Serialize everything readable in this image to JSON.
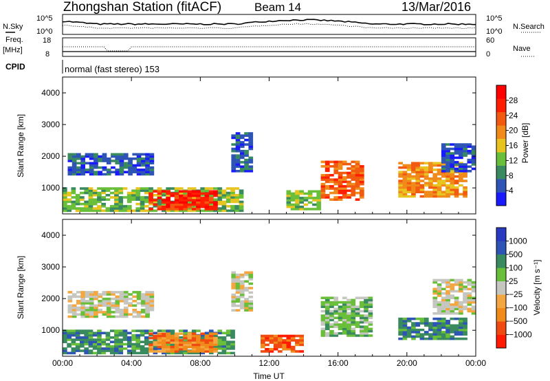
{
  "header": {
    "station": "Zhongshan Station (fitACF)",
    "beam": "Beam 14",
    "date": "13/Mar/2016"
  },
  "strip_noise": {
    "left_label": "N.Sky",
    "right_label": "N.Search",
    "left_ticks": [
      "10^5",
      "10^0"
    ],
    "right_ticks": [
      "10^5",
      "10^0"
    ]
  },
  "strip_freq": {
    "left_label_1": "Freq.",
    "left_label_2": "[MHz]",
    "left_ticks": [
      "18",
      "8"
    ],
    "right_label": "Nave",
    "right_ticks": [
      "60",
      "0"
    ]
  },
  "strip_cpid": {
    "label": "CPID",
    "text": "normal (fast stereo) 153"
  },
  "colors": {
    "power": [
      "#1a1aff",
      "#2e55b5",
      "#3a8a60",
      "#6abf3a",
      "#e8c420",
      "#f08a1a",
      "#f25a10",
      "#ff1f00",
      "#ff0000"
    ],
    "velocity": [
      "#ff1a00",
      "#f04a10",
      "#f08a1a",
      "#f4a640",
      "#c6c6c0",
      "#6abf3a",
      "#3a8a60",
      "#2e55b5",
      "#2a3ac0"
    ]
  },
  "chart_data": [
    {
      "type": "heatmap",
      "panel": "power",
      "ylabel": "Slant Range [km]",
      "ylim": [
        180,
        4500
      ],
      "y_ticks": [
        "1000",
        "2000",
        "3000",
        "4000"
      ],
      "x_ticks": [
        "00:00",
        "04:00",
        "08:00",
        "12:00",
        "16:00",
        "20:00",
        "00:00"
      ],
      "colorbar": {
        "label": "Power [dB]",
        "ticks": [
          "4",
          "8",
          "12",
          "16",
          "20",
          "24",
          "28"
        ]
      },
      "regions": [
        {
          "t": [
            0.3,
            5.2
          ],
          "r": [
            1400,
            2100
          ],
          "level": 1
        },
        {
          "t": [
            0.0,
            10.5
          ],
          "r": [
            250,
            1000
          ],
          "level": 3
        },
        {
          "t": [
            5.0,
            9.0
          ],
          "r": [
            300,
            900
          ],
          "level": 7
        },
        {
          "t": [
            9.8,
            11.0
          ],
          "r": [
            1500,
            2700
          ],
          "level": 1
        },
        {
          "t": [
            13.0,
            15.0
          ],
          "r": [
            300,
            900
          ],
          "level": 3
        },
        {
          "t": [
            15.0,
            17.5
          ],
          "r": [
            600,
            1800
          ],
          "level": 6
        },
        {
          "t": [
            19.5,
            23.5
          ],
          "r": [
            700,
            1800
          ],
          "level": 5
        },
        {
          "t": [
            22.0,
            24.0
          ],
          "r": [
            1500,
            2400
          ],
          "level": 1
        }
      ]
    },
    {
      "type": "heatmap",
      "panel": "velocity",
      "ylabel": "Slant Range [km]",
      "xlabel": "Time UT",
      "ylim": [
        180,
        4500
      ],
      "y_ticks": [
        "1000",
        "2000",
        "3000",
        "4000"
      ],
      "x_ticks": [
        "00:00",
        "04:00",
        "08:00",
        "12:00",
        "16:00",
        "20:00",
        "00:00"
      ],
      "colorbar": {
        "label": "Velocity [m s⁻¹]",
        "ticks": [
          "1000",
          "500",
          "100",
          "25",
          "−25",
          "−100",
          "−500",
          "−1000"
        ]
      },
      "regions": [
        {
          "t": [
            0.3,
            5.2
          ],
          "r": [
            1400,
            2200
          ],
          "level": 4
        },
        {
          "t": [
            0.0,
            10.0
          ],
          "r": [
            250,
            1000
          ],
          "level": 6
        },
        {
          "t": [
            5.0,
            9.0
          ],
          "r": [
            300,
            900
          ],
          "level": 2
        },
        {
          "t": [
            9.8,
            11.0
          ],
          "r": [
            1600,
            2800
          ],
          "level": 4
        },
        {
          "t": [
            11.5,
            14.0
          ],
          "r": [
            300,
            800
          ],
          "level": 1
        },
        {
          "t": [
            15.0,
            18.0
          ],
          "r": [
            800,
            2000
          ],
          "level": 5
        },
        {
          "t": [
            19.5,
            23.5
          ],
          "r": [
            700,
            1400
          ],
          "level": 6
        },
        {
          "t": [
            21.5,
            24.0
          ],
          "r": [
            1500,
            2600
          ],
          "level": 4
        }
      ]
    }
  ]
}
